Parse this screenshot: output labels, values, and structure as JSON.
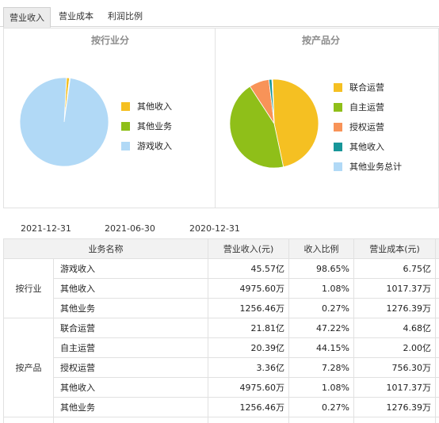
{
  "tabs": [
    {
      "label": "营业收入",
      "active": true
    },
    {
      "label": "营业成本",
      "active": false
    },
    {
      "label": "利润比例",
      "active": false
    }
  ],
  "charts": {
    "left_title": "按行业分",
    "right_title": "按产品分"
  },
  "chart_data": [
    {
      "type": "pie",
      "title": "按行业分",
      "labels": [
        "其他收入",
        "其他业务",
        "游戏收入"
      ],
      "values": [
        1.08,
        0.27,
        98.65
      ],
      "colors": [
        "#f5c022",
        "#8fbf19",
        "#b1d9f6"
      ]
    },
    {
      "type": "pie",
      "title": "按产品分",
      "labels": [
        "联合运营",
        "自主运营",
        "授权运营",
        "其他收入",
        "其他业务总计"
      ],
      "values": [
        47.22,
        44.15,
        7.28,
        1.08,
        0.27
      ],
      "colors": [
        "#f5c022",
        "#8fbf19",
        "#f89358",
        "#179699",
        "#b1d9f6"
      ]
    }
  ],
  "date_tabs": [
    "2021-12-31",
    "2021-06-30",
    "2020-12-31"
  ],
  "table": {
    "headers": [
      "业务名称",
      "营业收入(元)",
      "收入比例",
      "营业成本(元)"
    ],
    "groups": [
      {
        "name": "按行业",
        "rows": [
          {
            "name": "游戏收入",
            "revenue": "45.57亿",
            "ratio": "98.65%",
            "cost": "6.75亿"
          },
          {
            "name": "其他收入",
            "revenue": "4975.60万",
            "ratio": "1.08%",
            "cost": "1017.37万"
          },
          {
            "name": "其他业务",
            "revenue": "1256.46万",
            "ratio": "0.27%",
            "cost": "1276.39万"
          }
        ]
      },
      {
        "name": "按产品",
        "rows": [
          {
            "name": "联合运营",
            "revenue": "21.81亿",
            "ratio": "47.22%",
            "cost": "4.68亿"
          },
          {
            "name": "自主运营",
            "revenue": "20.39亿",
            "ratio": "44.15%",
            "cost": "2.00亿"
          },
          {
            "name": "授权运营",
            "revenue": "3.36亿",
            "ratio": "7.28%",
            "cost": "756.30万"
          },
          {
            "name": "其他收入",
            "revenue": "4975.60万",
            "ratio": "1.08%",
            "cost": "1017.37万"
          },
          {
            "name": "其他业务",
            "revenue": "1256.46万",
            "ratio": "0.27%",
            "cost": "1276.39万"
          }
        ]
      }
    ]
  }
}
